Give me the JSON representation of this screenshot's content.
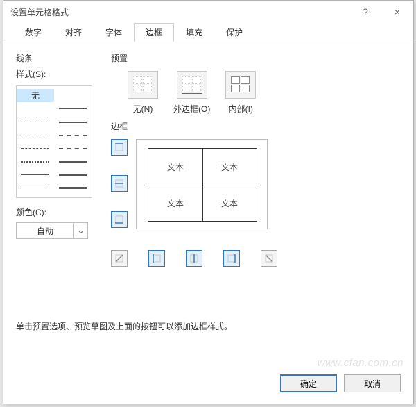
{
  "title": "设置单元格格式",
  "titlebar": {
    "help_glyph": "?",
    "close_glyph": "×"
  },
  "tabs": [
    "数字",
    "对齐",
    "字体",
    "边框",
    "填充",
    "保护"
  ],
  "active_tab_index": 3,
  "line_section_label": "线条",
  "style_label": "样式(S):",
  "style_none_label": "无",
  "line_styles": [
    {
      "left": "none",
      "right": "1px solid"
    },
    {
      "left": "1px dotted",
      "right": "2px solid"
    },
    {
      "left": "1px dotted",
      "right": "2px dashed"
    },
    {
      "left": "1px dashed",
      "right": "2px dashed"
    },
    {
      "left": "2px dotted",
      "right": "2px solid"
    },
    {
      "left": "1px solid",
      "right": "3px solid"
    },
    {
      "left": "1px solid",
      "right": "3px double"
    }
  ],
  "color_label": "颜色(C):",
  "color_value": "自动",
  "preset_label": "预置",
  "presets": [
    {
      "key": "none",
      "label": "无(N)",
      "underline": "N"
    },
    {
      "key": "outline",
      "label": "外边框(O)",
      "underline": "O"
    },
    {
      "key": "inside",
      "label": "内部(I)",
      "underline": "I"
    }
  ],
  "border_label": "边框",
  "preview_text": "文本",
  "border_buttons": {
    "v": [
      {
        "key": "top",
        "selected": true
      },
      {
        "key": "hmid",
        "selected": true
      },
      {
        "key": "bottom",
        "selected": true
      }
    ],
    "h": [
      {
        "key": "diag-up",
        "selected": false
      },
      {
        "key": "left",
        "selected": true
      },
      {
        "key": "vmid",
        "selected": true
      },
      {
        "key": "right",
        "selected": true
      },
      {
        "key": "diag-down",
        "selected": false
      }
    ]
  },
  "hint_text": "单击预置选项、预览草图及上面的按钮可以添加边框样式。",
  "footer": {
    "ok": "确定",
    "cancel": "取消"
  },
  "watermark": "www.cfan.com.cn",
  "colors": {
    "dialog_border": "#b4b4b4",
    "tab_border": "#d0d0d0",
    "box_border": "#cccccc",
    "btn_border": "#adadad",
    "primary_border": "#3a76b1",
    "sel_bg": "#e1effa",
    "sel_border": "#2a7ab8"
  }
}
